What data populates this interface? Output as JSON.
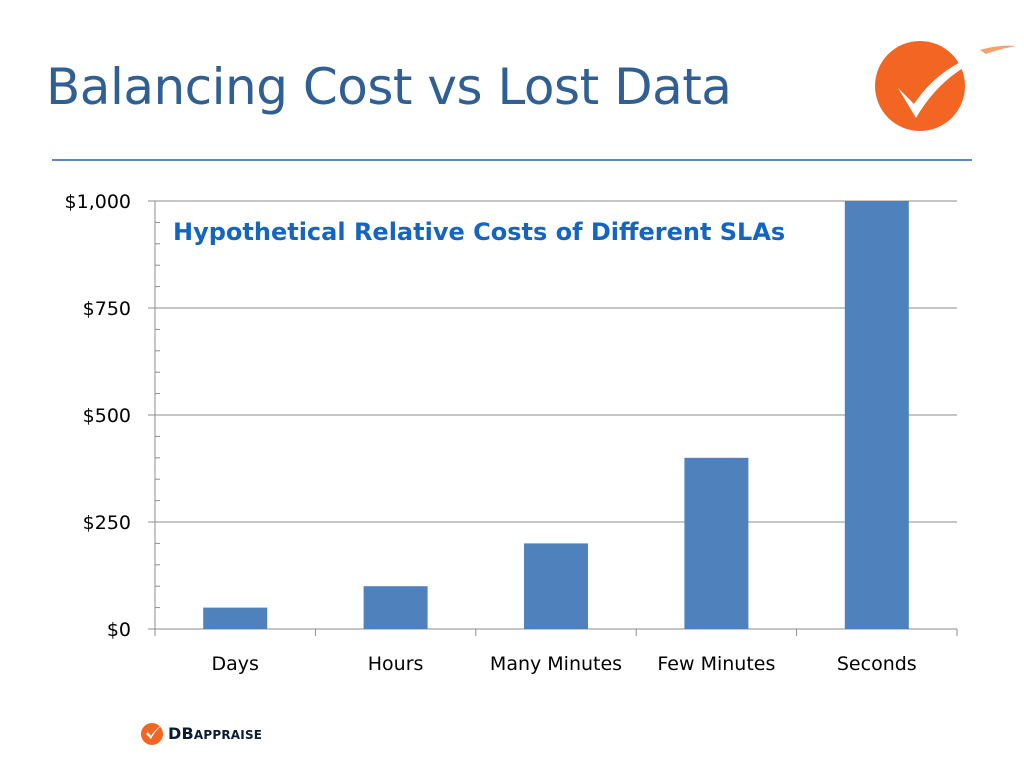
{
  "slide": {
    "title": "Balancing Cost vs Lost Data"
  },
  "logo": {
    "icon": "orange-check-circle-icon"
  },
  "brand": {
    "prefix": "DB",
    "suffix": "APPRAISE",
    "icon": "orange-check-icon"
  },
  "colors": {
    "title": "#2f5f93",
    "accent": "#f26522",
    "bar": "#4f81bd",
    "chart_title": "#1565c0"
  },
  "chart_data": {
    "type": "bar",
    "title": "Hypothetical Relative Costs of Different SLAs",
    "categories": [
      "Days",
      "Hours",
      "Many Minutes",
      "Few Minutes",
      "Seconds"
    ],
    "values": [
      50,
      100,
      200,
      400,
      1000
    ],
    "ylim": [
      0,
      1000
    ],
    "yticks": [
      {
        "value": 0,
        "label": "$0"
      },
      {
        "value": 250,
        "label": "$250"
      },
      {
        "value": 500,
        "label": "$500"
      },
      {
        "value": 750,
        "label": "$750"
      },
      {
        "value": 1000,
        "label": "$1,000"
      }
    ],
    "minor_tick_step": 50,
    "grid": true,
    "legend": "none"
  }
}
